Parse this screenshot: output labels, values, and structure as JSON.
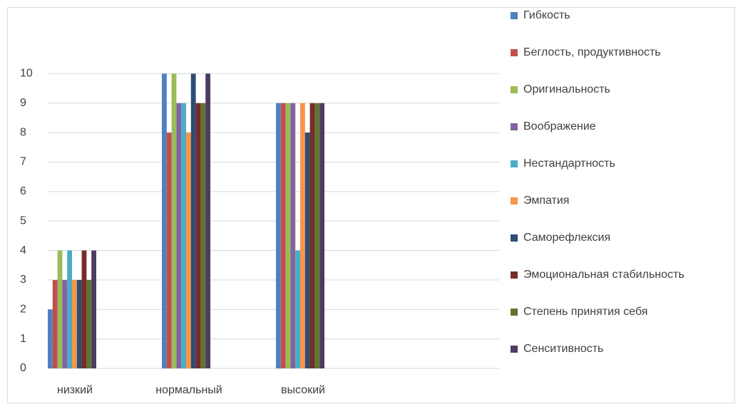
{
  "chart_data": {
    "type": "bar",
    "categories": [
      "низкий",
      "нормальный",
      "высокий"
    ],
    "series": [
      {
        "name": "Гибкость",
        "color": "#4f81bd",
        "values": [
          2,
          10,
          9
        ]
      },
      {
        "name": "Беглость, продуктивность",
        "color": "#c0504d",
        "values": [
          3,
          8,
          9
        ]
      },
      {
        "name": "Оригинальность",
        "color": "#9bbb59",
        "values": [
          4,
          10,
          9
        ]
      },
      {
        "name": "Воображение",
        "color": "#8064a2",
        "values": [
          3,
          9,
          9
        ]
      },
      {
        "name": "Нестандартность",
        "color": "#4bacc6",
        "values": [
          4,
          9,
          4
        ]
      },
      {
        "name": "Эмпатия",
        "color": "#f79646",
        "values": [
          3,
          8,
          9
        ]
      },
      {
        "name": "Саморефлексия",
        "color": "#2c4d75",
        "values": [
          3,
          10,
          8
        ]
      },
      {
        "name": "Эмоциональная стабильность",
        "color": "#772c2a",
        "values": [
          4,
          9,
          9
        ]
      },
      {
        "name": "Степень принятия себя",
        "color": "#5f7530",
        "values": [
          3,
          9,
          9
        ]
      },
      {
        "name": "Сенситивность",
        "color": "#4d3b62",
        "values": [
          4,
          10,
          9
        ]
      }
    ],
    "ylim": [
      0,
      11
    ],
    "yticks": [
      0,
      1,
      2,
      3,
      4,
      5,
      6,
      7,
      8,
      9,
      10
    ],
    "grid": true,
    "legend": "right"
  }
}
